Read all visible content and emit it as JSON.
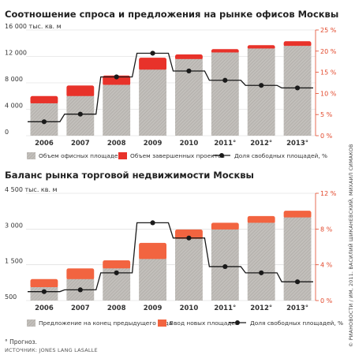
{
  "colors": {
    "grey": "#bdb9b5",
    "orange": "#f26440",
    "red": "#e8322a",
    "line": "#1a1a1a",
    "rightAxis": "#e2472a"
  },
  "chart_data": [
    {
      "type": "bar",
      "title": "Соотношение спроса и предложения на рынке офисов Москвы",
      "ylabel_unit": "тыс. кв. м",
      "ylim": [
        0,
        16000
      ],
      "yticks": [
        "16 000",
        "12 000",
        "8 000",
        "4 000",
        "0"
      ],
      "y2lim": [
        0,
        25
      ],
      "y2ticks": [
        "25 %",
        "20 %",
        "15 %",
        "10 %",
        "5 %",
        "0 %"
      ],
      "categories": [
        "2006",
        "2007",
        "2008",
        "2009",
        "2010",
        "2011°",
        "2012°",
        "2013°"
      ],
      "series": [
        {
          "name": "Объем офисных площадей",
          "kind": "bar",
          "values": [
            4900,
            6000,
            7700,
            10000,
            11600,
            12600,
            13200,
            13600
          ]
        },
        {
          "name": "Объем завершенных проектов",
          "kind": "bar-stack",
          "values": [
            1100,
            1600,
            1400,
            1800,
            700,
            500,
            500,
            700
          ]
        },
        {
          "name": "Доля свободных площадей, %",
          "kind": "line",
          "axis": "right",
          "values": [
            3.3,
            5.1,
            13.9,
            19.5,
            15.3,
            13.1,
            11.9,
            11.3
          ]
        }
      ],
      "legend": [
        "Объем офисных площадей",
        "Объем завершенных проектов",
        "Доля свободных площадей, %"
      ]
    },
    {
      "type": "bar",
      "title": "Баланс рынка торговой недвижимости Москвы",
      "ylabel_unit": "тыс. кв. м",
      "ylim": [
        500,
        4500
      ],
      "yticks": [
        "4 500",
        "3 000",
        "1 500",
        "500"
      ],
      "y2lim": [
        0,
        12
      ],
      "y2ticks": [
        "12 %",
        "8 %",
        "4 %",
        "0 %"
      ],
      "categories": [
        "2006",
        "2007",
        "2008",
        "2009",
        "2010",
        "2011°",
        "2012°",
        "2013°"
      ],
      "series": [
        {
          "name": "Предложение на конец предыдущего года",
          "kind": "bar",
          "values": [
            1000,
            1300,
            1700,
            2050,
            2800,
            3150,
            3400,
            3600
          ]
        },
        {
          "name": "Ввод новых площадей",
          "kind": "bar-stack",
          "values": [
            300,
            400,
            300,
            600,
            350,
            250,
            250,
            250
          ]
        },
        {
          "name": "Доля свободных площадей, %",
          "kind": "line",
          "axis": "right",
          "values": [
            1.0,
            1.2,
            3.1,
            8.7,
            7.0,
            3.8,
            3.1,
            2.1
          ]
        }
      ],
      "legend": [
        "Предложение на конец предыдущего года",
        "Ввод новых площадей",
        "Доля свободных площадей, %"
      ]
    }
  ],
  "footnote": "° Прогноз.",
  "source": "ИСТОЧНИК: JONES LANG LASALLE",
  "credit": "© РИАНОВОСТИ / ИМ, 2011. ВАСИЛИЙ ШИКАНЕВСКИЙ, МИХАИЛ СИМАКОВ"
}
